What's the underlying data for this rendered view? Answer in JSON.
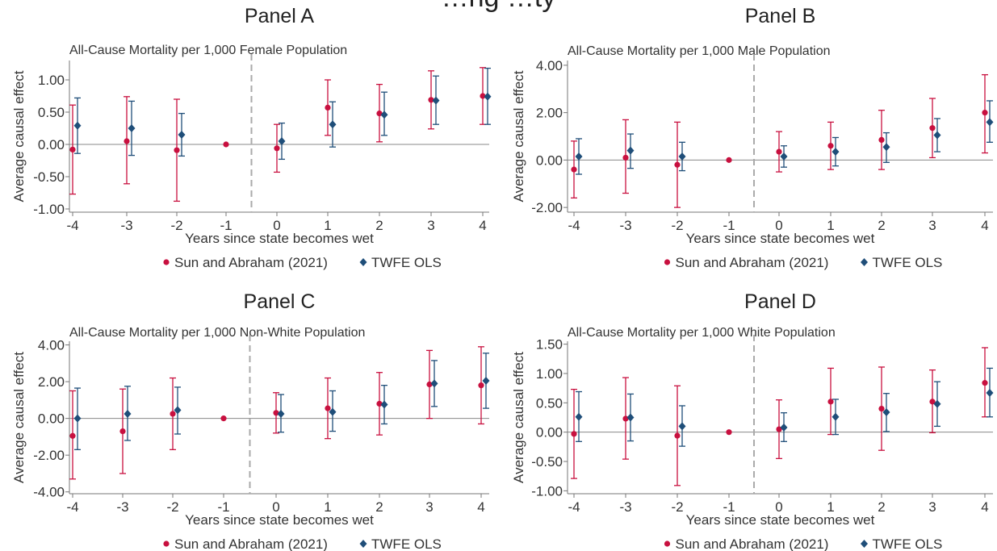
{
  "figure_title": "…ng …ty",
  "colors": {
    "sun": "#c8103f",
    "twfe": "#1f4e79",
    "zero_line": "#888888",
    "event_line": "#aaaaaa"
  },
  "legend": {
    "sun_label": "Sun and Abraham (2021)",
    "twfe_label": "TWFE OLS",
    "sun_marker": "circle",
    "twfe_marker": "diamond"
  },
  "chart_data": [
    {
      "panel": "Panel A",
      "type": "scatter",
      "title": "All-Cause Mortality per 1,000 Female Population",
      "xlabel": "Years since state becomes wet",
      "ylabel": "Average causal effect",
      "x_ticks": [
        "-4",
        "-3",
        "-2",
        "-1",
        "0",
        "1",
        "2",
        "3",
        "4"
      ],
      "y_ticks": [
        "1.00",
        "0.50",
        "0.00",
        "-0.50",
        "-1.00"
      ],
      "ylim": [
        -1.05,
        1.3
      ],
      "series": [
        {
          "name": "Sun and Abraham (2021)",
          "x": [
            -4,
            -3,
            -2,
            -1,
            0,
            1,
            2,
            3,
            4
          ],
          "y": [
            -0.08,
            0.05,
            -0.09,
            0.0,
            -0.06,
            0.57,
            0.48,
            0.69,
            0.75
          ],
          "lo": [
            -0.77,
            -0.61,
            -0.88,
            null,
            -0.43,
            0.14,
            0.04,
            0.24,
            0.31
          ],
          "hi": [
            0.61,
            0.74,
            0.7,
            null,
            0.31,
            1.0,
            0.93,
            1.14,
            1.19
          ]
        },
        {
          "name": "TWFE OLS",
          "x": [
            -4,
            -3,
            -2,
            -1,
            0,
            1,
            2,
            3,
            4
          ],
          "y": [
            0.29,
            0.25,
            0.15,
            null,
            0.05,
            0.31,
            0.46,
            0.68,
            0.74
          ],
          "lo": [
            -0.14,
            -0.17,
            -0.18,
            null,
            -0.23,
            -0.04,
            0.14,
            0.31,
            0.31
          ],
          "hi": [
            0.72,
            0.67,
            0.48,
            null,
            0.33,
            0.66,
            0.81,
            1.06,
            1.18
          ]
        }
      ]
    },
    {
      "panel": "Panel B",
      "type": "scatter",
      "title": "All-Cause Mortality per 1,000 Male Population",
      "xlabel": "Years since state becomes wet",
      "ylabel": "Average causal effect",
      "x_ticks": [
        "-4",
        "-3",
        "-2",
        "-1",
        "0",
        "1",
        "2",
        "3",
        "4"
      ],
      "y_ticks": [
        "4.00",
        "2.00",
        "0.00",
        "-2.00"
      ],
      "ylim": [
        -2.2,
        4.2
      ],
      "series": [
        {
          "name": "Sun and Abraham (2021)",
          "x": [
            -4,
            -3,
            -2,
            -1,
            0,
            1,
            2,
            3,
            4
          ],
          "y": [
            -0.4,
            0.1,
            -0.2,
            0.0,
            0.35,
            0.6,
            0.85,
            1.35,
            2.0
          ],
          "lo": [
            -1.6,
            -1.4,
            -2.0,
            null,
            -0.5,
            -0.4,
            -0.4,
            0.1,
            0.3
          ],
          "hi": [
            0.8,
            1.7,
            1.6,
            null,
            1.2,
            1.6,
            2.1,
            2.6,
            3.6
          ]
        },
        {
          "name": "TWFE OLS",
          "x": [
            -4,
            -3,
            -2,
            -1,
            0,
            1,
            2,
            3,
            4
          ],
          "y": [
            0.15,
            0.4,
            0.15,
            null,
            0.15,
            0.35,
            0.55,
            1.05,
            1.6
          ],
          "lo": [
            -0.6,
            -0.35,
            -0.45,
            null,
            -0.3,
            -0.25,
            -0.1,
            0.35,
            0.75
          ],
          "hi": [
            0.9,
            1.1,
            0.75,
            null,
            0.6,
            0.95,
            1.15,
            1.75,
            2.5
          ]
        }
      ]
    },
    {
      "panel": "Panel C",
      "type": "scatter",
      "title": "All-Cause Mortality per 1,000 Non-White Population",
      "xlabel": "Years since state becomes wet",
      "ylabel": "Average causal effect",
      "x_ticks": [
        "-4",
        "-3",
        "-2",
        "-1",
        "0",
        "1",
        "2",
        "3",
        "4"
      ],
      "y_ticks": [
        "4.00",
        "2.00",
        "0.00",
        "-2.00",
        "-4.00"
      ],
      "ylim": [
        -4.1,
        4.2
      ],
      "series": [
        {
          "name": "Sun and Abraham (2021)",
          "x": [
            -4,
            -3,
            -2,
            -1,
            0,
            1,
            2,
            3,
            4
          ],
          "y": [
            -0.95,
            -0.7,
            0.25,
            0.0,
            0.3,
            0.55,
            0.8,
            1.85,
            1.8
          ],
          "lo": [
            -3.3,
            -3.0,
            -1.7,
            null,
            -0.8,
            -1.1,
            -0.9,
            0.0,
            -0.3
          ],
          "hi": [
            1.5,
            1.6,
            2.2,
            null,
            1.4,
            2.2,
            2.5,
            3.7,
            3.9
          ]
        },
        {
          "name": "TWFE OLS",
          "x": [
            -4,
            -3,
            -2,
            -1,
            0,
            1,
            2,
            3,
            4
          ],
          "y": [
            0.0,
            0.25,
            0.45,
            null,
            0.25,
            0.35,
            0.75,
            1.9,
            2.05
          ],
          "lo": [
            -1.7,
            -1.2,
            -0.85,
            null,
            -0.75,
            -0.7,
            -0.3,
            0.65,
            0.55
          ],
          "hi": [
            1.65,
            1.75,
            1.7,
            null,
            1.3,
            1.5,
            1.8,
            3.15,
            3.55
          ]
        }
      ]
    },
    {
      "panel": "Panel D",
      "type": "scatter",
      "title": "All-Cause Mortality per 1,000 White Population",
      "xlabel": "Years since state becomes wet",
      "ylabel": "Average causal effect",
      "x_ticks": [
        "-4",
        "-3",
        "-2",
        "-1",
        "0",
        "1",
        "2",
        "3",
        "4"
      ],
      "y_ticks": [
        "1.50",
        "1.00",
        "0.50",
        "0.00",
        "-0.50",
        "-1.00"
      ],
      "ylim": [
        -1.05,
        1.55
      ],
      "series": [
        {
          "name": "Sun and Abraham (2021)",
          "x": [
            -4,
            -3,
            -2,
            -1,
            0,
            1,
            2,
            3,
            4
          ],
          "y": [
            -0.03,
            0.23,
            -0.06,
            0.0,
            0.05,
            0.52,
            0.4,
            0.52,
            0.84
          ],
          "lo": [
            -0.79,
            -0.46,
            -0.91,
            null,
            -0.45,
            -0.04,
            -0.31,
            -0.01,
            0.26
          ],
          "hi": [
            0.73,
            0.93,
            0.79,
            null,
            0.55,
            1.09,
            1.11,
            1.06,
            1.44
          ]
        },
        {
          "name": "TWFE OLS",
          "x": [
            -4,
            -3,
            -2,
            -1,
            0,
            1,
            2,
            3,
            4
          ],
          "y": [
            0.26,
            0.25,
            0.1,
            null,
            0.08,
            0.26,
            0.34,
            0.48,
            0.67
          ],
          "lo": [
            -0.16,
            -0.15,
            -0.24,
            null,
            -0.16,
            -0.04,
            0.01,
            0.1,
            0.26
          ],
          "hi": [
            0.69,
            0.65,
            0.45,
            null,
            0.33,
            0.56,
            0.66,
            0.86,
            1.09
          ]
        }
      ]
    }
  ]
}
